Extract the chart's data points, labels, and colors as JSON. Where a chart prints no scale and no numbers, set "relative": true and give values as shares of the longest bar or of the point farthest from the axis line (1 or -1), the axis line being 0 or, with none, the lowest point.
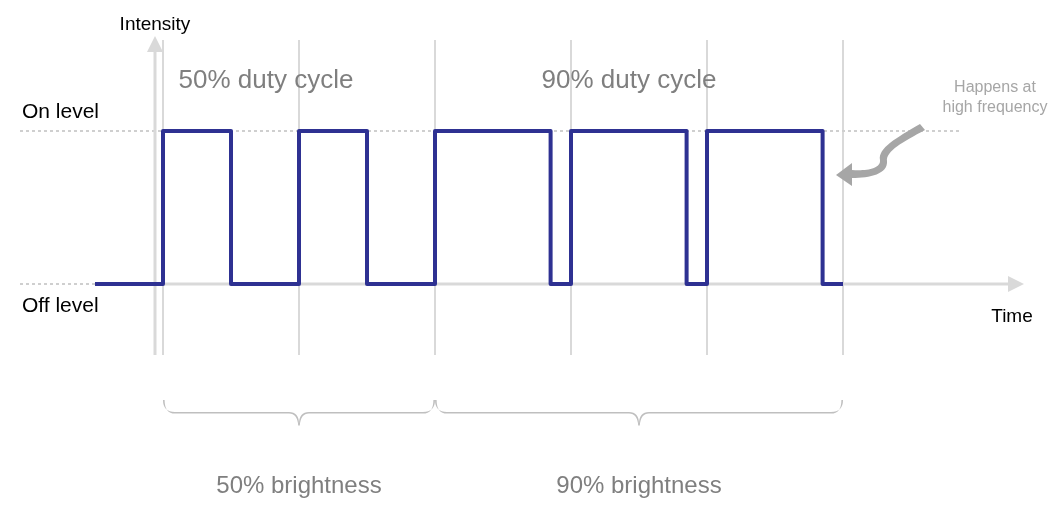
{
  "chart_data": {
    "type": "step",
    "relative": true,
    "categories": [
      null,
      null,
      null,
      null,
      null,
      null,
      null,
      null,
      null,
      null,
      null,
      null,
      null,
      null,
      null,
      null,
      null,
      null,
      null,
      null,
      null,
      null,
      null,
      null,
      null,
      null,
      null,
      null,
      null,
      null,
      null,
      null,
      null,
      null,
      null,
      null,
      null,
      null,
      null,
      null,
      null,
      null,
      null,
      null,
      null,
      null,
      null,
      null,
      null,
      null,
      null,
      null,
      null,
      null,
      null,
      null,
      null,
      null,
      null,
      null,
      null,
      null,
      null,
      null,
      null,
      null,
      null,
      null,
      null,
      null,
      null,
      null,
      null,
      null,
      null,
      null,
      null,
      null,
      null,
      null,
      null,
      null,
      null,
      null,
      null,
      null,
      null,
      null,
      null,
      null,
      null,
      null,
      null,
      null,
      null,
      null,
      null,
      null,
      null,
      null,
      null,
      null,
      null,
      null,
      null,
      null,
      null,
      null,
      null,
      null,
      null
    ],
    "series": [
      {
        "color": "#2e3192",
        "values": [
          0,
          0,
          0,
          0,
          0,
          0,
          0,
          0,
          0,
          0,
          1,
          1,
          1,
          1,
          1,
          1,
          1,
          1,
          1,
          1,
          0,
          0,
          0,
          0,
          0,
          0,
          0,
          0,
          0,
          0,
          1,
          1,
          1,
          1,
          1,
          1,
          1,
          1,
          1,
          1,
          0,
          0,
          0,
          0,
          0,
          0,
          0,
          0,
          0,
          0,
          1,
          1,
          1,
          1,
          1,
          1,
          1,
          1,
          1,
          1,
          1,
          1,
          1,
          1,
          1,
          1,
          1,
          0,
          0,
          0,
          1,
          1,
          1,
          1,
          1,
          1,
          1,
          1,
          1,
          1,
          1,
          1,
          1,
          1,
          1,
          1,
          1,
          0,
          0,
          0,
          1,
          1,
          1,
          1,
          1,
          1,
          1,
          1,
          1,
          1,
          1,
          1,
          1,
          1,
          1,
          1,
          1,
          0,
          0,
          0,
          0
        ]
      }
    ],
    "ref_lines": [
      {
        "axis": "y",
        "value": 1,
        "label": "On level",
        "color": "#cfcfcf",
        "line_style": "dotted"
      },
      {
        "axis": "y",
        "value": 0,
        "label": "Off level",
        "color": "#cfcfcf",
        "line_style": "dotted"
      }
    ],
    "grid": "x",
    "line_style": "solid",
    "marker": "none",
    "annotations": [
      "Intensity",
      "50% duty cycle",
      "90% duty cycle",
      "Happens at high frequency",
      "Time",
      "50% brightness",
      "90% brightness"
    ]
  }
}
